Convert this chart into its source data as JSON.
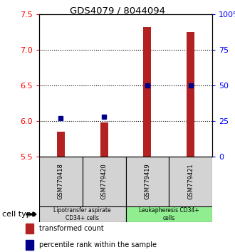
{
  "title": "GDS4079 / 8044094",
  "samples": [
    "GSM779418",
    "GSM779420",
    "GSM779419",
    "GSM779421"
  ],
  "transformed_counts": [
    5.85,
    5.98,
    7.32,
    7.25
  ],
  "percentile_ranks": [
    27,
    28,
    50,
    50
  ],
  "ylim_left": [
    5.5,
    7.5
  ],
  "ylim_right": [
    0,
    100
  ],
  "yticks_left": [
    5.5,
    6.0,
    6.5,
    7.0,
    7.5
  ],
  "yticks_right": [
    0,
    25,
    50,
    75,
    100
  ],
  "ytick_labels_right": [
    "0",
    "25",
    "50",
    "75",
    "100%"
  ],
  "bar_color": "#b22222",
  "dot_color": "#00008b",
  "bar_bottom": 5.5,
  "cell_types": [
    {
      "label": "Lipotransfer aspirate\nCD34+ cells",
      "samples": [
        0,
        1
      ],
      "color": "#d3d3d3"
    },
    {
      "label": "Leukapheresis CD34+\ncells",
      "samples": [
        2,
        3
      ],
      "color": "#90EE90"
    }
  ],
  "cell_type_label": "cell type",
  "legend_bar_label": "transformed count",
  "legend_dot_label": "percentile rank within the sample",
  "box_color": "#d3d3d3",
  "grid_yticks": [
    6.0,
    6.5,
    7.0
  ]
}
